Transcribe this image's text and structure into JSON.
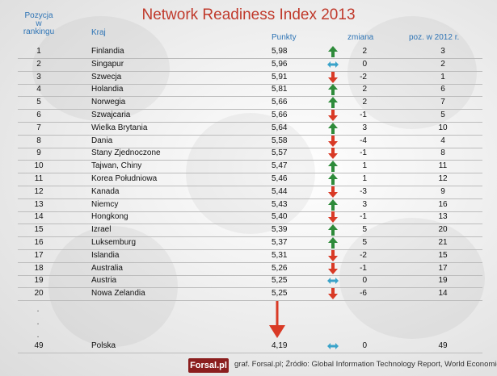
{
  "title": "Network Readiness Index 2013",
  "headers": {
    "position": [
      "Pozycja",
      "w",
      "rankingu"
    ],
    "country": "Kraj",
    "score": "Punkty",
    "change": "zmiana",
    "prev": "poz. w 2012 r."
  },
  "colors": {
    "up": "#2e8b3a",
    "down": "#d93a26",
    "same": "#3aa3c9",
    "title": "#c0392b",
    "header": "#2e74b5"
  },
  "footer": {
    "logo": "Forsal.pl",
    "source": "graf. Forsal.pl;  Źródło: Global Information Technology Report, World Economic Forum"
  },
  "ellipsis": [
    ".",
    ".",
    "."
  ],
  "chart_data": {
    "type": "table",
    "title": "Network Readiness Index 2013",
    "columns": [
      "Pozycja w rankingu",
      "Kraj",
      "Punkty",
      "zmiana",
      "poz. w 2012 r."
    ],
    "rows": [
      {
        "pos": "1",
        "country": "Finlandia",
        "score": "5,98",
        "trend": "up",
        "change": "2",
        "prev": "3"
      },
      {
        "pos": "2",
        "country": "Singapur",
        "score": "5,96",
        "trend": "same",
        "change": "0",
        "prev": "2"
      },
      {
        "pos": "3",
        "country": "Szwecja",
        "score": "5,91",
        "trend": "down",
        "change": "-2",
        "prev": "1"
      },
      {
        "pos": "4",
        "country": "Holandia",
        "score": "5,81",
        "trend": "up",
        "change": "2",
        "prev": "6"
      },
      {
        "pos": "5",
        "country": "Norwegia",
        "score": "5,66",
        "trend": "up",
        "change": "2",
        "prev": "7"
      },
      {
        "pos": "6",
        "country": "Szwajcaria",
        "score": "5,66",
        "trend": "down",
        "change": "-1",
        "prev": "5"
      },
      {
        "pos": "7",
        "country": "Wielka Brytania",
        "score": "5,64",
        "trend": "up",
        "change": "3",
        "prev": "10"
      },
      {
        "pos": "8",
        "country": "Dania",
        "score": "5,58",
        "trend": "down",
        "change": "-4",
        "prev": "4"
      },
      {
        "pos": "9",
        "country": "Stany Zjednoczone",
        "score": "5,57",
        "trend": "down",
        "change": "-1",
        "prev": "8"
      },
      {
        "pos": "10",
        "country": "Tajwan, Chiny",
        "score": "5,47",
        "trend": "up",
        "change": "1",
        "prev": "11"
      },
      {
        "pos": "11",
        "country": "Korea Południowa",
        "score": "5,46",
        "trend": "up",
        "change": "1",
        "prev": "12"
      },
      {
        "pos": "12",
        "country": "Kanada",
        "score": "5,44",
        "trend": "down",
        "change": "-3",
        "prev": "9"
      },
      {
        "pos": "13",
        "country": "Niemcy",
        "score": "5,43",
        "trend": "up",
        "change": "3",
        "prev": "16"
      },
      {
        "pos": "14",
        "country": "Hongkong",
        "score": "5,40",
        "trend": "down",
        "change": "-1",
        "prev": "13"
      },
      {
        "pos": "15",
        "country": "Izrael",
        "score": "5,39",
        "trend": "up",
        "change": "5",
        "prev": "20"
      },
      {
        "pos": "16",
        "country": "Luksemburg",
        "score": "5,37",
        "trend": "up",
        "change": "5",
        "prev": "21"
      },
      {
        "pos": "17",
        "country": "Islandia",
        "score": "5,31",
        "trend": "down",
        "change": "-2",
        "prev": "15"
      },
      {
        "pos": "18",
        "country": "Australia",
        "score": "5,26",
        "trend": "down",
        "change": "-1",
        "prev": "17"
      },
      {
        "pos": "19",
        "country": "Austria",
        "score": "5,25",
        "trend": "same",
        "change": "0",
        "prev": "19"
      },
      {
        "pos": "20",
        "country": "Nowa Zelandia",
        "score": "5,25",
        "trend": "down",
        "change": "-6",
        "prev": "14"
      }
    ],
    "highlight_row": {
      "pos": "49",
      "country": "Polska",
      "score": "4,19",
      "trend": "same",
      "change": "0",
      "prev": "49"
    }
  }
}
